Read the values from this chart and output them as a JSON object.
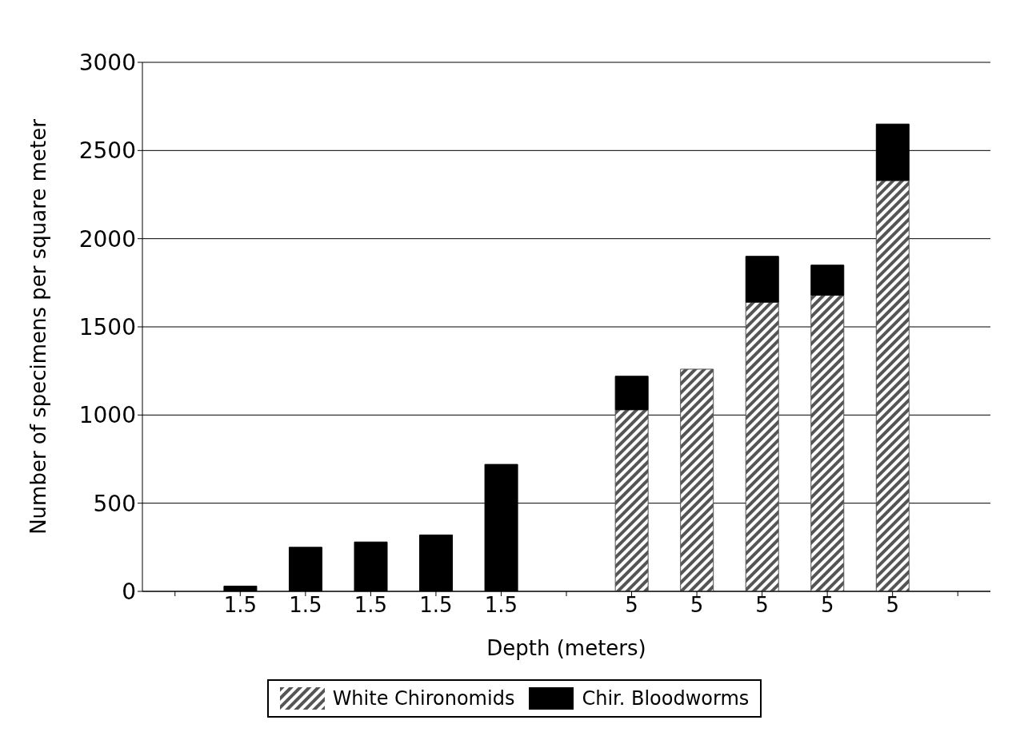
{
  "chart_data": {
    "type": "bar",
    "stacked": true,
    "xlabel": "Depth (meters)",
    "ylabel": "Number of specimens per square meter",
    "categories": [
      null,
      "1.5",
      "1.5",
      "1.5",
      "1.5",
      "1.5",
      null,
      "5",
      "5",
      "5",
      "5",
      "5",
      null
    ],
    "series": [
      {
        "name": "White Chironomids",
        "color": "#555555",
        "values": [
          null,
          0,
          0,
          0,
          0,
          0,
          null,
          1030,
          1260,
          1640,
          1680,
          2330,
          null
        ]
      },
      {
        "name": "Chir. Bloodworms",
        "color": "#000000",
        "values": [
          null,
          30,
          250,
          280,
          320,
          720,
          null,
          190,
          0,
          260,
          170,
          320,
          null
        ]
      }
    ],
    "ylim": [
      0,
      3000
    ],
    "yticks": [
      0,
      500,
      1000,
      1500,
      2000,
      2500,
      3000
    ],
    "grid": "y",
    "legend": "bottom"
  }
}
